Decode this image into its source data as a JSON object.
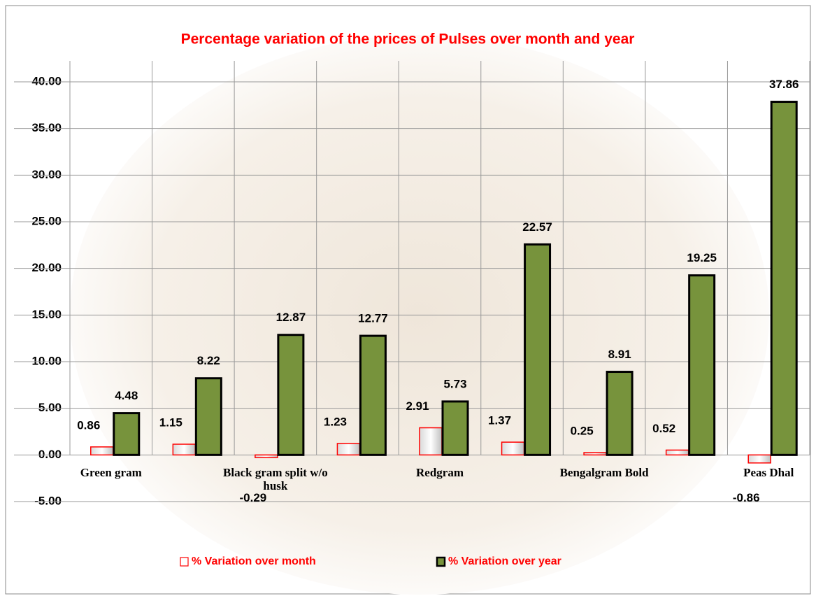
{
  "chart_data": {
    "type": "bar",
    "title": "Percentage variation of the prices of Pulses over month and year",
    "categories": [
      "Green gram",
      null,
      "Black gram  split w/o husk",
      null,
      "Redgram",
      null,
      "Bengalgram Bold",
      null,
      "Peas Dhal"
    ],
    "series": [
      {
        "name": "% Variation over month",
        "color": "#ffffff",
        "values": [
          0.86,
          1.15,
          -0.29,
          1.23,
          2.91,
          1.37,
          0.25,
          0.52,
          -0.86
        ]
      },
      {
        "name": "% Variation over year",
        "color": "#77933c",
        "values": [
          4.48,
          8.22,
          12.87,
          12.77,
          5.73,
          22.57,
          8.91,
          19.25,
          37.86
        ]
      }
    ],
    "ylim": [
      -5,
      40
    ],
    "yticks": [
      {
        "value": -5,
        "label": "-5.00"
      },
      {
        "value": 0,
        "label": "0.00"
      },
      {
        "value": 5,
        "label": "5.00"
      },
      {
        "value": 10,
        "label": "10.00"
      },
      {
        "value": 15,
        "label": "15.00"
      },
      {
        "value": 20,
        "label": "20.00"
      },
      {
        "value": 25,
        "label": "25.00"
      },
      {
        "value": 30,
        "label": "30.00"
      },
      {
        "value": 35,
        "label": "35.00"
      },
      {
        "value": 40,
        "label": "40.00"
      }
    ],
    "grid": true,
    "legend": "bottom"
  }
}
